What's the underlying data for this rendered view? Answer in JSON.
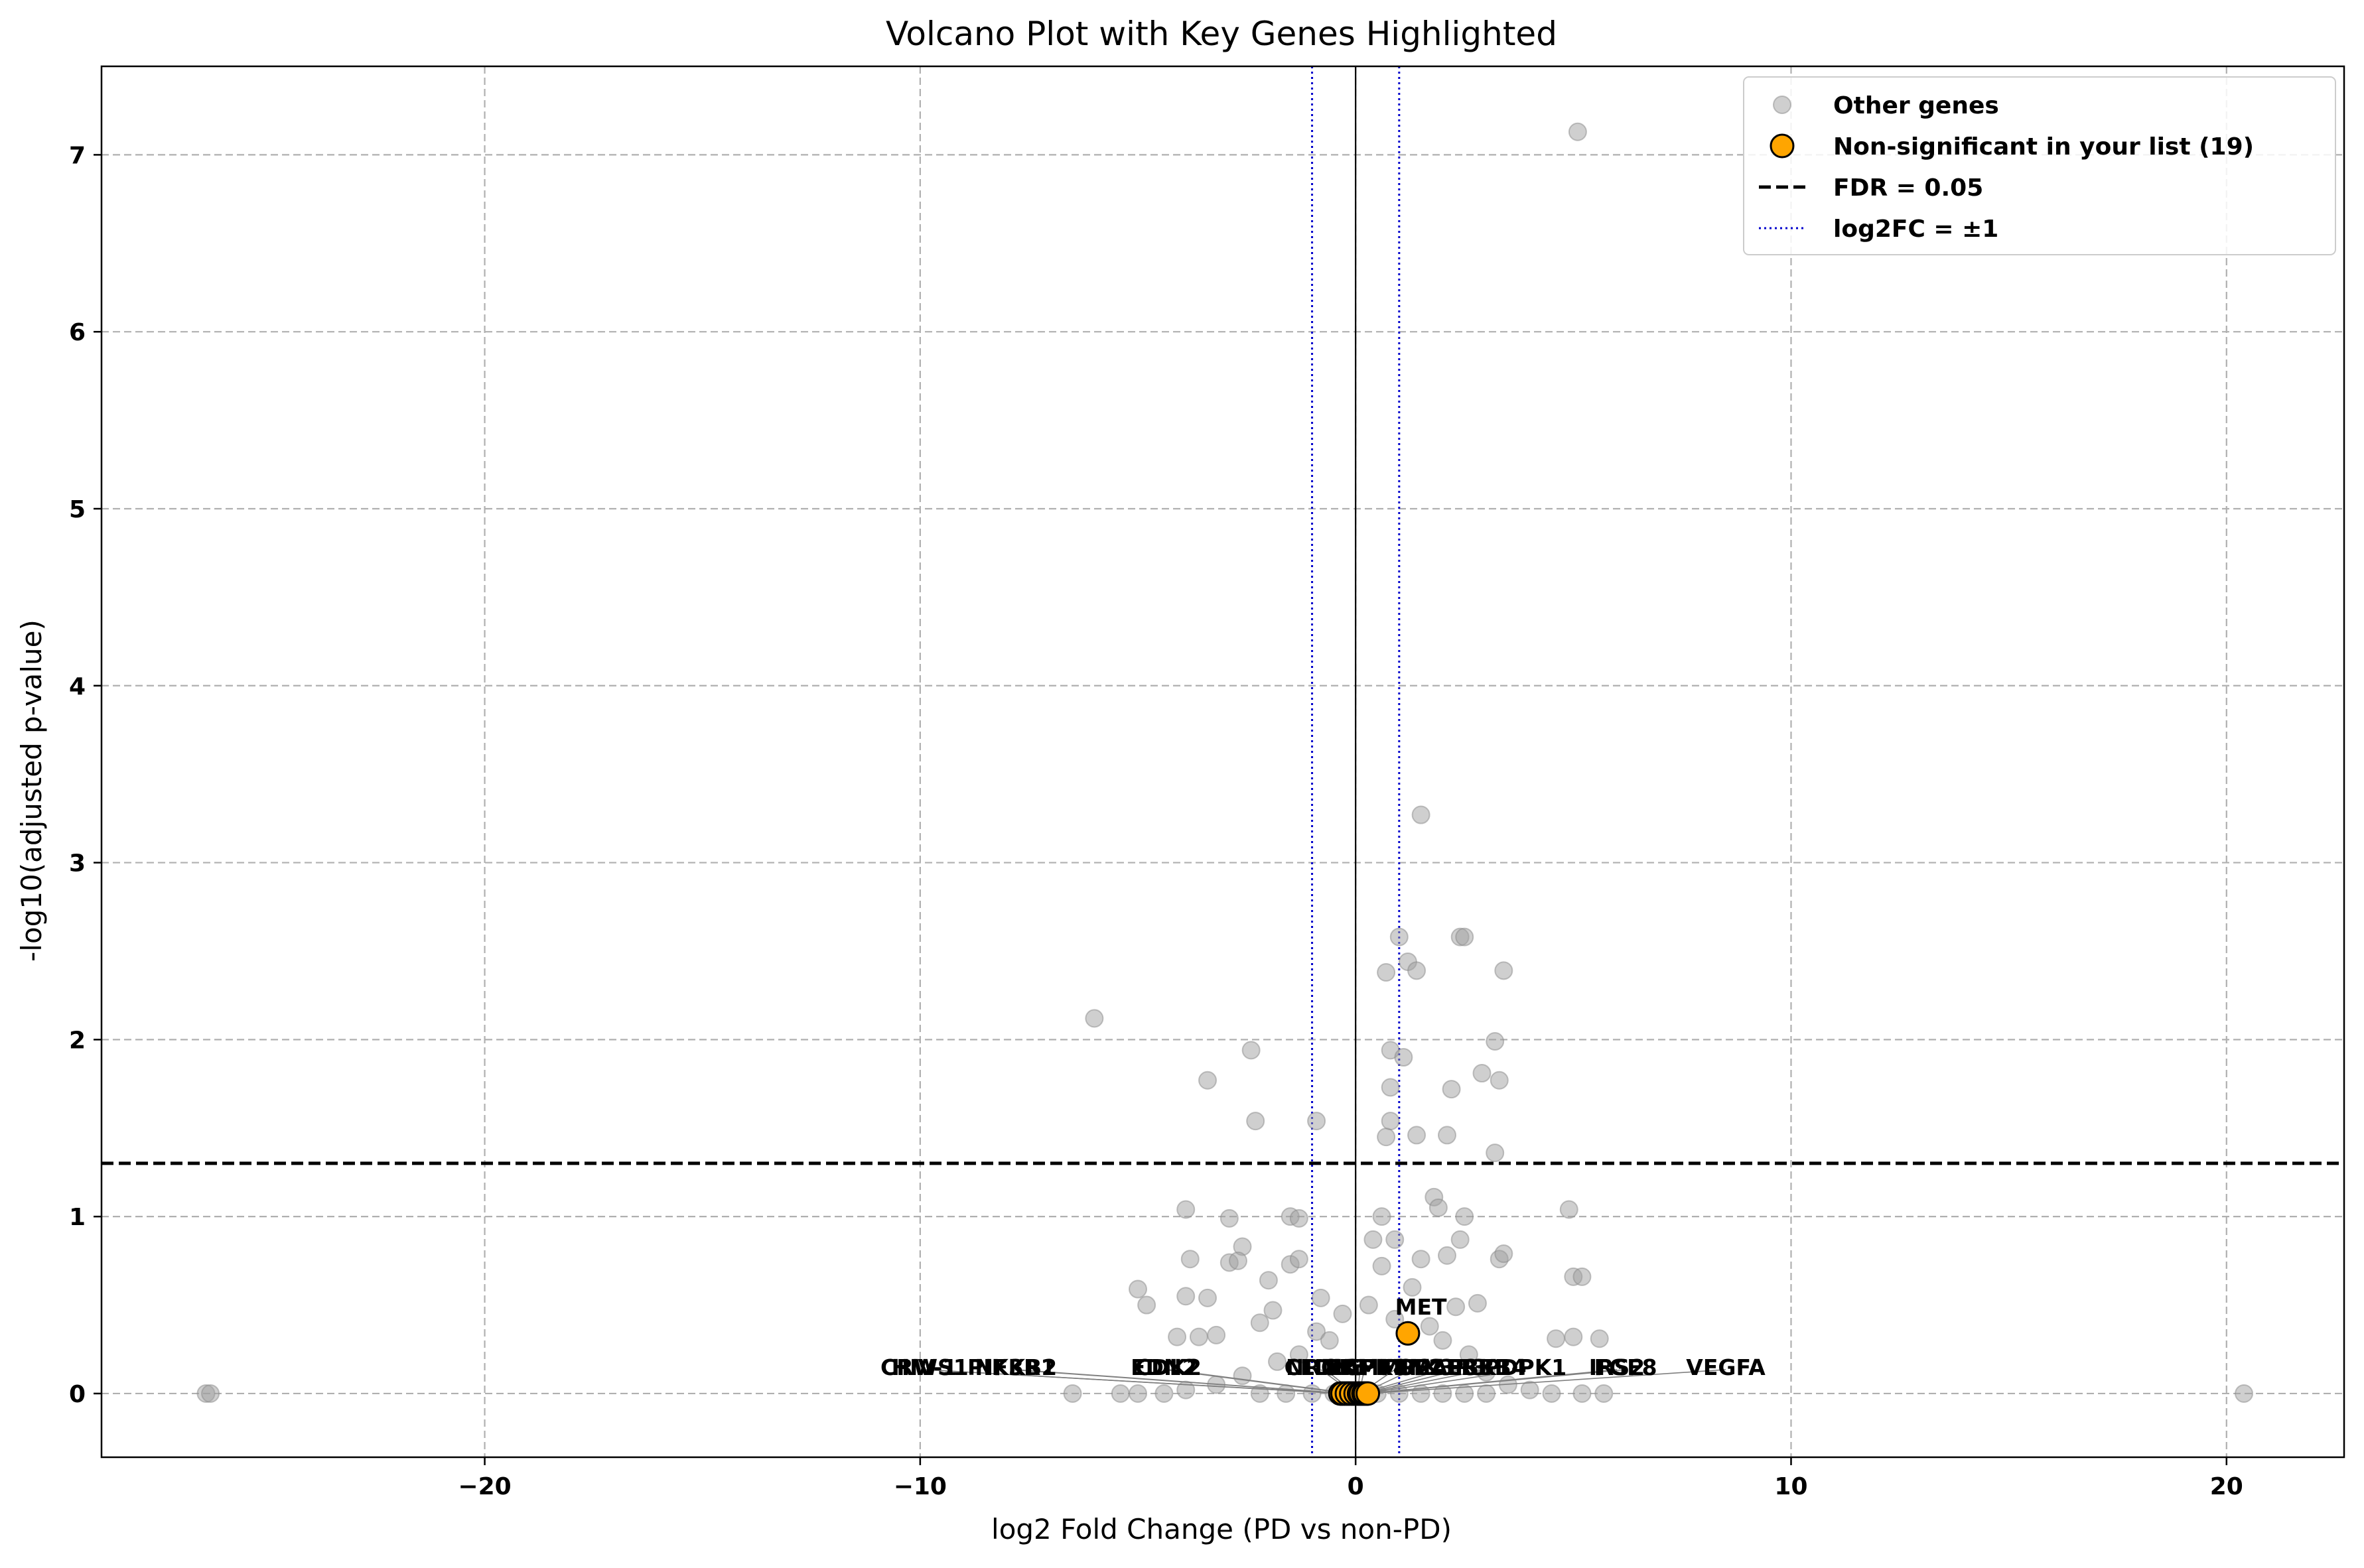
{
  "chart_data": {
    "type": "scatter",
    "title": "Volcano Plot with Key Genes Highlighted",
    "xlabel": "log2 Fold Change (PD vs non-PD)",
    "ylabel": "-log10(adjusted p-value)",
    "xlim": [
      -28.8,
      22.7
    ],
    "ylim": [
      -0.36,
      7.5
    ],
    "xticks": [
      -20,
      -10,
      0,
      10,
      20
    ],
    "xtick_labels": [
      "−20",
      "−10",
      "0",
      "10",
      "20"
    ],
    "yticks": [
      0,
      1,
      2,
      3,
      4,
      5,
      6,
      7
    ],
    "ytick_labels": [
      "0",
      "1",
      "2",
      "3",
      "4",
      "5",
      "6",
      "7"
    ],
    "grid": true,
    "legend_position": "top-right",
    "legend": [
      "Other genes",
      "Non-significant in your list (19)",
      "FDR = 0.05",
      "log2FC = ±1"
    ],
    "colors": {
      "other": "#a0a0a0",
      "highlight": "#ffa500",
      "fdr_line": "#000000",
      "fc_line": "#0000cc"
    },
    "fdr_threshold_y": 1.301,
    "fc_thresholds_x": [
      -1,
      1
    ],
    "series": [
      {
        "name": "Other genes",
        "points": [
          [
            -26.4,
            0.0
          ],
          [
            -26.3,
            0.0
          ],
          [
            20.4,
            0.0
          ],
          [
            5.1,
            7.13
          ],
          [
            1.5,
            3.27
          ],
          [
            1.0,
            2.58
          ],
          [
            2.4,
            2.58
          ],
          [
            2.5,
            2.58
          ],
          [
            1.2,
            2.44
          ],
          [
            1.4,
            2.39
          ],
          [
            0.7,
            2.38
          ],
          [
            3.4,
            2.39
          ],
          [
            -6.0,
            2.12
          ],
          [
            -2.4,
            1.94
          ],
          [
            0.8,
            1.94
          ],
          [
            1.1,
            1.9
          ],
          [
            3.2,
            1.99
          ],
          [
            -3.4,
            1.77
          ],
          [
            0.8,
            1.73
          ],
          [
            2.2,
            1.72
          ],
          [
            2.9,
            1.81
          ],
          [
            3.3,
            1.77
          ],
          [
            -2.3,
            1.54
          ],
          [
            -0.9,
            1.54
          ],
          [
            0.8,
            1.54
          ],
          [
            1.4,
            1.46
          ],
          [
            0.7,
            1.45
          ],
          [
            2.1,
            1.46
          ],
          [
            3.2,
            1.36
          ],
          [
            -3.9,
            1.04
          ],
          [
            -2.9,
            0.99
          ],
          [
            -1.5,
            1.0
          ],
          [
            -1.3,
            0.99
          ],
          [
            0.6,
            1.0
          ],
          [
            1.8,
            1.11
          ],
          [
            1.9,
            1.05
          ],
          [
            2.5,
            1.0
          ],
          [
            4.9,
            1.04
          ],
          [
            -3.8,
            0.76
          ],
          [
            -2.6,
            0.83
          ],
          [
            -2.9,
            0.74
          ],
          [
            -2.7,
            0.75
          ],
          [
            -1.5,
            0.73
          ],
          [
            -1.3,
            0.76
          ],
          [
            0.4,
            0.87
          ],
          [
            0.9,
            0.87
          ],
          [
            1.5,
            0.76
          ],
          [
            2.1,
            0.78
          ],
          [
            2.4,
            0.87
          ],
          [
            3.3,
            0.76
          ],
          [
            3.4,
            0.79
          ],
          [
            -5.0,
            0.59
          ],
          [
            -4.8,
            0.5
          ],
          [
            -3.9,
            0.55
          ],
          [
            -3.4,
            0.54
          ],
          [
            -2.0,
            0.64
          ],
          [
            5.0,
            0.66
          ],
          [
            5.2,
            0.66
          ],
          [
            -4.1,
            0.32
          ],
          [
            -3.6,
            0.32
          ],
          [
            -3.2,
            0.33
          ],
          [
            -2.2,
            0.4
          ],
          [
            -1.9,
            0.47
          ],
          [
            -0.8,
            0.54
          ],
          [
            2.3,
            0.49
          ],
          [
            2.8,
            0.51
          ],
          [
            4.6,
            0.31
          ],
          [
            5.0,
            0.32
          ],
          [
            5.6,
            0.31
          ],
          [
            -6.5,
            0.0
          ],
          [
            -5.4,
            0.0
          ],
          [
            -5.0,
            0.0
          ],
          [
            -4.4,
            0.0
          ],
          [
            -3.9,
            0.02
          ],
          [
            -3.2,
            0.05
          ],
          [
            -2.6,
            0.1
          ],
          [
            -1.8,
            0.18
          ],
          [
            -1.3,
            0.22
          ],
          [
            -0.9,
            0.35
          ],
          [
            -0.6,
            0.3
          ],
          [
            -0.3,
            0.45
          ],
          [
            0.3,
            0.5
          ],
          [
            0.6,
            0.72
          ],
          [
            0.9,
            0.42
          ],
          [
            1.3,
            0.6
          ],
          [
            1.7,
            0.38
          ],
          [
            2.0,
            0.3
          ],
          [
            2.6,
            0.22
          ],
          [
            3.0,
            0.12
          ],
          [
            3.5,
            0.05
          ],
          [
            4.0,
            0.02
          ],
          [
            4.5,
            0.0
          ],
          [
            5.2,
            0.0
          ],
          [
            5.7,
            0.0
          ],
          [
            -2.2,
            0.0
          ],
          [
            -1.6,
            0.0
          ],
          [
            -1.0,
            0.0
          ],
          [
            -0.5,
            0.0
          ],
          [
            0.5,
            0.0
          ],
          [
            1.0,
            0.0
          ],
          [
            1.5,
            0.0
          ],
          [
            2.0,
            0.0
          ],
          [
            2.5,
            0.0
          ],
          [
            3.0,
            0.0
          ]
        ]
      },
      {
        "name": "Non-significant in your list (19)",
        "points": [
          [
            1.2,
            0.34
          ],
          [
            -0.35,
            0.0
          ],
          [
            -0.25,
            0.0
          ],
          [
            -0.15,
            0.0
          ],
          [
            -0.05,
            0.0
          ],
          [
            0.05,
            0.0
          ],
          [
            0.1,
            0.0
          ],
          [
            0.15,
            0.0
          ],
          [
            0.2,
            0.0
          ],
          [
            0.25,
            0.0
          ],
          [
            -0.3,
            0.0
          ],
          [
            -0.2,
            0.0
          ],
          [
            -0.1,
            0.0
          ],
          [
            0.0,
            0.0
          ],
          [
            0.08,
            0.0
          ],
          [
            0.12,
            0.0
          ],
          [
            0.18,
            0.0
          ],
          [
            0.22,
            0.0
          ],
          [
            0.28,
            0.0
          ]
        ]
      }
    ],
    "labels": [
      {
        "text": "MET",
        "x": 1.5,
        "y": 0.49,
        "px": 1.2,
        "py": 0.34
      },
      {
        "text": "CRWS1",
        "x": -9.9,
        "y": 0.15,
        "px": -0.35,
        "py": 0.0
      },
      {
        "text": "HIV-1",
        "x": -9.9,
        "y": 0.15,
        "px": -0.3,
        "py": 0.0
      },
      {
        "text": "PIK3R1",
        "x": -7.9,
        "y": 0.15,
        "px": -0.25,
        "py": 0.0
      },
      {
        "text": "NFKB2",
        "x": -7.8,
        "y": 0.15,
        "px": -0.2,
        "py": 0.0
      },
      {
        "text": "EDN2",
        "x": -4.4,
        "y": 0.15,
        "px": -0.15,
        "py": 0.0
      },
      {
        "text": "CDK2",
        "x": -4.3,
        "y": 0.15,
        "px": -0.1,
        "py": 0.0
      },
      {
        "text": "NRGR",
        "x": -0.8,
        "y": 0.15,
        "px": -0.05,
        "py": 0.0
      },
      {
        "text": "CLDN5",
        "x": -0.7,
        "y": 0.15,
        "px": 0.0,
        "py": 0.0
      },
      {
        "text": "EGFR",
        "x": 0.1,
        "y": 0.15,
        "px": 0.05,
        "py": 0.0
      },
      {
        "text": "MAPK8",
        "x": 0.2,
        "y": 0.15,
        "px": 0.08,
        "py": 0.0
      },
      {
        "text": "MMP2",
        "x": 0.9,
        "y": 0.15,
        "px": 0.1,
        "py": 0.0
      },
      {
        "text": "PIK3R3",
        "x": 2.0,
        "y": 0.15,
        "px": 0.12,
        "py": 0.0
      },
      {
        "text": "FGF2",
        "x": 1.3,
        "y": 0.15,
        "px": 0.15,
        "py": 0.0
      },
      {
        "text": "MAP3K1",
        "x": 2.4,
        "y": 0.15,
        "px": 0.18,
        "py": 0.0
      },
      {
        "text": "ERBB4",
        "x": 3.0,
        "y": 0.15,
        "px": 0.2,
        "py": 0.0
      },
      {
        "text": "PDPK1",
        "x": 3.9,
        "y": 0.15,
        "px": 0.22,
        "py": 0.0
      },
      {
        "text": "IRS2",
        "x": 6.0,
        "y": 0.15,
        "px": 0.25,
        "py": 0.0
      },
      {
        "text": "FGF8",
        "x": 6.2,
        "y": 0.15,
        "px": 0.28,
        "py": 0.0
      },
      {
        "text": "VEGFA",
        "x": 8.5,
        "y": 0.15,
        "px": 0.3,
        "py": 0.0
      }
    ]
  }
}
